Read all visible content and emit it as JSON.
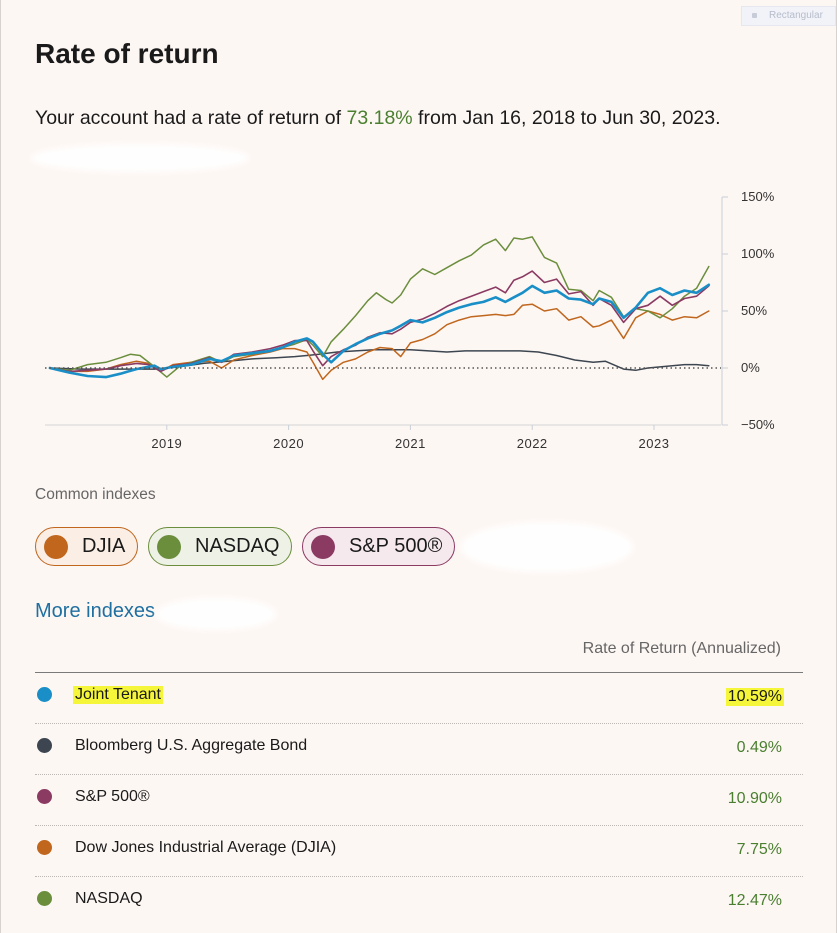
{
  "header": {
    "title": "Rate of return",
    "summary_prefix": "Your account had a rate of return of ",
    "summary_rate": "73.18%",
    "summary_suffix": " from Jan 16, 2018 to Jun 30, 2023.",
    "corner_tab": "Rectangular"
  },
  "colors": {
    "account": "#1a8fc7",
    "bond": "#3d4650",
    "sp500": "#8b3a62",
    "djia": "#c0661d",
    "nasdaq": "#6b8e3d",
    "positive": "#4a7f2f",
    "link": "#1f6fa0",
    "highlight": "#f5f53a"
  },
  "chart_data": {
    "type": "line",
    "x_ticks": [
      "2019",
      "2020",
      "2021",
      "2022",
      "2023"
    ],
    "y_ticks": [
      "150%",
      "100%",
      "50%",
      "0%",
      "−50%"
    ],
    "ylim": [
      -50,
      150
    ],
    "xlim": [
      2018.0,
      2023.55
    ],
    "zero_line": "dotted",
    "axis_side": "right",
    "series": [
      {
        "name": "Joint Tenant",
        "color": "#1a8fc7",
        "width": 2.6,
        "points": [
          [
            2018.04,
            0
          ],
          [
            2018.2,
            -4
          ],
          [
            2018.35,
            -7
          ],
          [
            2018.5,
            -8
          ],
          [
            2018.62,
            -5
          ],
          [
            2018.75,
            -1
          ],
          [
            2018.9,
            2
          ],
          [
            2018.95,
            -1
          ],
          [
            2019.05,
            1
          ],
          [
            2019.2,
            3
          ],
          [
            2019.35,
            8
          ],
          [
            2019.45,
            6
          ],
          [
            2019.55,
            11
          ],
          [
            2019.7,
            13
          ],
          [
            2019.85,
            15
          ],
          [
            2019.95,
            18
          ],
          [
            2020.05,
            23
          ],
          [
            2020.15,
            26
          ],
          [
            2020.2,
            23
          ],
          [
            2020.3,
            10
          ],
          [
            2020.35,
            5
          ],
          [
            2020.45,
            15
          ],
          [
            2020.55,
            21
          ],
          [
            2020.65,
            26
          ],
          [
            2020.75,
            30
          ],
          [
            2020.85,
            33
          ],
          [
            2020.92,
            37
          ],
          [
            2021.0,
            42
          ],
          [
            2021.1,
            40
          ],
          [
            2021.2,
            44
          ],
          [
            2021.3,
            49
          ],
          [
            2021.4,
            53
          ],
          [
            2021.5,
            56
          ],
          [
            2021.6,
            58
          ],
          [
            2021.7,
            62
          ],
          [
            2021.78,
            58
          ],
          [
            2021.85,
            62
          ],
          [
            2021.92,
            66
          ],
          [
            2022.0,
            72
          ],
          [
            2022.1,
            66
          ],
          [
            2022.2,
            68
          ],
          [
            2022.3,
            61
          ],
          [
            2022.4,
            60
          ],
          [
            2022.5,
            56
          ],
          [
            2022.55,
            61
          ],
          [
            2022.65,
            58
          ],
          [
            2022.75,
            44
          ],
          [
            2022.85,
            53
          ],
          [
            2022.95,
            66
          ],
          [
            2023.05,
            70
          ],
          [
            2023.15,
            64
          ],
          [
            2023.25,
            68
          ],
          [
            2023.35,
            66
          ],
          [
            2023.45,
            73
          ]
        ]
      },
      {
        "name": "Bloomberg U.S. Aggregate Bond",
        "color": "#3d4650",
        "width": 1.5,
        "points": [
          [
            2018.04,
            0
          ],
          [
            2018.3,
            -1
          ],
          [
            2018.6,
            -1
          ],
          [
            2018.9,
            -1
          ],
          [
            2019.1,
            1
          ],
          [
            2019.3,
            4
          ],
          [
            2019.5,
            6
          ],
          [
            2019.7,
            8
          ],
          [
            2019.9,
            9
          ],
          [
            2020.05,
            10
          ],
          [
            2020.15,
            11
          ],
          [
            2020.25,
            12
          ],
          [
            2020.4,
            14
          ],
          [
            2020.55,
            15
          ],
          [
            2020.7,
            16
          ],
          [
            2020.85,
            16
          ],
          [
            2021.0,
            16
          ],
          [
            2021.15,
            15
          ],
          [
            2021.3,
            14
          ],
          [
            2021.45,
            15
          ],
          [
            2021.6,
            15
          ],
          [
            2021.75,
            15
          ],
          [
            2021.9,
            15
          ],
          [
            2022.05,
            14
          ],
          [
            2022.2,
            11
          ],
          [
            2022.35,
            7
          ],
          [
            2022.5,
            5
          ],
          [
            2022.6,
            6
          ],
          [
            2022.75,
            -1
          ],
          [
            2022.85,
            -2
          ],
          [
            2022.95,
            0
          ],
          [
            2023.05,
            1
          ],
          [
            2023.15,
            2
          ],
          [
            2023.25,
            3
          ],
          [
            2023.35,
            3
          ],
          [
            2023.45,
            2
          ]
        ]
      },
      {
        "name": "S&P 500®",
        "color": "#8b3a62",
        "width": 1.6,
        "points": [
          [
            2018.04,
            0
          ],
          [
            2018.2,
            -3
          ],
          [
            2018.35,
            -2
          ],
          [
            2018.5,
            -1
          ],
          [
            2018.62,
            2
          ],
          [
            2018.75,
            4
          ],
          [
            2018.85,
            3
          ],
          [
            2018.95,
            -3
          ],
          [
            2019.05,
            2
          ],
          [
            2019.2,
            4
          ],
          [
            2019.35,
            9
          ],
          [
            2019.45,
            5
          ],
          [
            2019.55,
            12
          ],
          [
            2019.7,
            14
          ],
          [
            2019.85,
            17
          ],
          [
            2019.95,
            20
          ],
          [
            2020.05,
            24
          ],
          [
            2020.15,
            24
          ],
          [
            2020.2,
            15
          ],
          [
            2020.28,
            2
          ],
          [
            2020.35,
            10
          ],
          [
            2020.45,
            16
          ],
          [
            2020.55,
            20
          ],
          [
            2020.65,
            27
          ],
          [
            2020.75,
            31
          ],
          [
            2020.85,
            30
          ],
          [
            2020.92,
            34
          ],
          [
            2021.0,
            40
          ],
          [
            2021.1,
            43
          ],
          [
            2021.2,
            48
          ],
          [
            2021.3,
            54
          ],
          [
            2021.4,
            59
          ],
          [
            2021.5,
            63
          ],
          [
            2021.6,
            67
          ],
          [
            2021.7,
            71
          ],
          [
            2021.78,
            66
          ],
          [
            2021.85,
            77
          ],
          [
            2021.92,
            80
          ],
          [
            2022.0,
            85
          ],
          [
            2022.1,
            75
          ],
          [
            2022.2,
            78
          ],
          [
            2022.3,
            65
          ],
          [
            2022.4,
            67
          ],
          [
            2022.5,
            55
          ],
          [
            2022.55,
            61
          ],
          [
            2022.65,
            55
          ],
          [
            2022.75,
            40
          ],
          [
            2022.85,
            52
          ],
          [
            2022.95,
            55
          ],
          [
            2023.05,
            63
          ],
          [
            2023.15,
            55
          ],
          [
            2023.25,
            61
          ],
          [
            2023.35,
            63
          ],
          [
            2023.45,
            72
          ]
        ]
      },
      {
        "name": "Dow Jones Industrial Average (DJIA)",
        "color": "#c0661d",
        "width": 1.5,
        "points": [
          [
            2018.04,
            0
          ],
          [
            2018.2,
            -3
          ],
          [
            2018.35,
            -3
          ],
          [
            2018.5,
            -1
          ],
          [
            2018.62,
            3
          ],
          [
            2018.75,
            6
          ],
          [
            2018.85,
            4
          ],
          [
            2018.95,
            -3
          ],
          [
            2019.05,
            3
          ],
          [
            2019.2,
            5
          ],
          [
            2019.35,
            6
          ],
          [
            2019.45,
            0
          ],
          [
            2019.55,
            7
          ],
          [
            2019.7,
            11
          ],
          [
            2019.85,
            14
          ],
          [
            2019.95,
            17
          ],
          [
            2020.05,
            17
          ],
          [
            2020.15,
            14
          ],
          [
            2020.2,
            5
          ],
          [
            2020.28,
            -10
          ],
          [
            2020.35,
            -2
          ],
          [
            2020.45,
            5
          ],
          [
            2020.55,
            8
          ],
          [
            2020.65,
            14
          ],
          [
            2020.75,
            18
          ],
          [
            2020.85,
            17
          ],
          [
            2020.92,
            10
          ],
          [
            2021.0,
            22
          ],
          [
            2021.1,
            25
          ],
          [
            2021.2,
            30
          ],
          [
            2021.3,
            38
          ],
          [
            2021.4,
            42
          ],
          [
            2021.5,
            45
          ],
          [
            2021.6,
            46
          ],
          [
            2021.7,
            47
          ],
          [
            2021.78,
            46
          ],
          [
            2021.85,
            47
          ],
          [
            2021.92,
            55
          ],
          [
            2022.0,
            56
          ],
          [
            2022.1,
            50
          ],
          [
            2022.2,
            52
          ],
          [
            2022.3,
            42
          ],
          [
            2022.4,
            45
          ],
          [
            2022.5,
            36
          ],
          [
            2022.55,
            37
          ],
          [
            2022.65,
            42
          ],
          [
            2022.75,
            26
          ],
          [
            2022.85,
            44
          ],
          [
            2022.95,
            50
          ],
          [
            2023.05,
            47
          ],
          [
            2023.15,
            42
          ],
          [
            2023.25,
            45
          ],
          [
            2023.35,
            44
          ],
          [
            2023.45,
            50
          ]
        ]
      },
      {
        "name": "NASDAQ",
        "color": "#6b8e3d",
        "width": 1.5,
        "points": [
          [
            2018.04,
            0
          ],
          [
            2018.2,
            -2
          ],
          [
            2018.35,
            3
          ],
          [
            2018.5,
            5
          ],
          [
            2018.62,
            9
          ],
          [
            2018.7,
            12
          ],
          [
            2018.78,
            11
          ],
          [
            2018.9,
            1
          ],
          [
            2019.0,
            -8
          ],
          [
            2019.1,
            1
          ],
          [
            2019.2,
            5
          ],
          [
            2019.35,
            10
          ],
          [
            2019.45,
            5
          ],
          [
            2019.55,
            10
          ],
          [
            2019.7,
            12
          ],
          [
            2019.85,
            15
          ],
          [
            2019.95,
            18
          ],
          [
            2020.05,
            21
          ],
          [
            2020.15,
            25
          ],
          [
            2020.2,
            20
          ],
          [
            2020.28,
            10
          ],
          [
            2020.35,
            23
          ],
          [
            2020.45,
            34
          ],
          [
            2020.55,
            46
          ],
          [
            2020.65,
            59
          ],
          [
            2020.72,
            66
          ],
          [
            2020.8,
            60
          ],
          [
            2020.85,
            57
          ],
          [
            2020.92,
            64
          ],
          [
            2021.0,
            78
          ],
          [
            2021.1,
            87
          ],
          [
            2021.2,
            82
          ],
          [
            2021.3,
            88
          ],
          [
            2021.4,
            94
          ],
          [
            2021.5,
            99
          ],
          [
            2021.6,
            108
          ],
          [
            2021.7,
            113
          ],
          [
            2021.78,
            103
          ],
          [
            2021.85,
            114
          ],
          [
            2021.92,
            113
          ],
          [
            2022.0,
            115
          ],
          [
            2022.1,
            97
          ],
          [
            2022.2,
            92
          ],
          [
            2022.3,
            69
          ],
          [
            2022.4,
            68
          ],
          [
            2022.5,
            59
          ],
          [
            2022.55,
            68
          ],
          [
            2022.65,
            62
          ],
          [
            2022.75,
            45
          ],
          [
            2022.85,
            52
          ],
          [
            2022.95,
            50
          ],
          [
            2023.05,
            44
          ],
          [
            2023.15,
            52
          ],
          [
            2023.25,
            63
          ],
          [
            2023.35,
            70
          ],
          [
            2023.45,
            89
          ]
        ]
      }
    ]
  },
  "indexes": {
    "label": "Common indexes",
    "chips": [
      "DJIA",
      "NASDAQ",
      "S&P 500®"
    ],
    "more_link": "More indexes"
  },
  "table": {
    "column_header": "Rate of Return (Annualized)",
    "rows": [
      {
        "name": "Joint Tenant",
        "value": "10.59%"
      },
      {
        "name": "Bloomberg U.S. Aggregate Bond",
        "value": "0.49%"
      },
      {
        "name": "S&P 500®",
        "value": "10.90%"
      },
      {
        "name": "Dow Jones Industrial Average (DJIA)",
        "value": "7.75%"
      },
      {
        "name": "NASDAQ",
        "value": "12.47%"
      }
    ]
  }
}
